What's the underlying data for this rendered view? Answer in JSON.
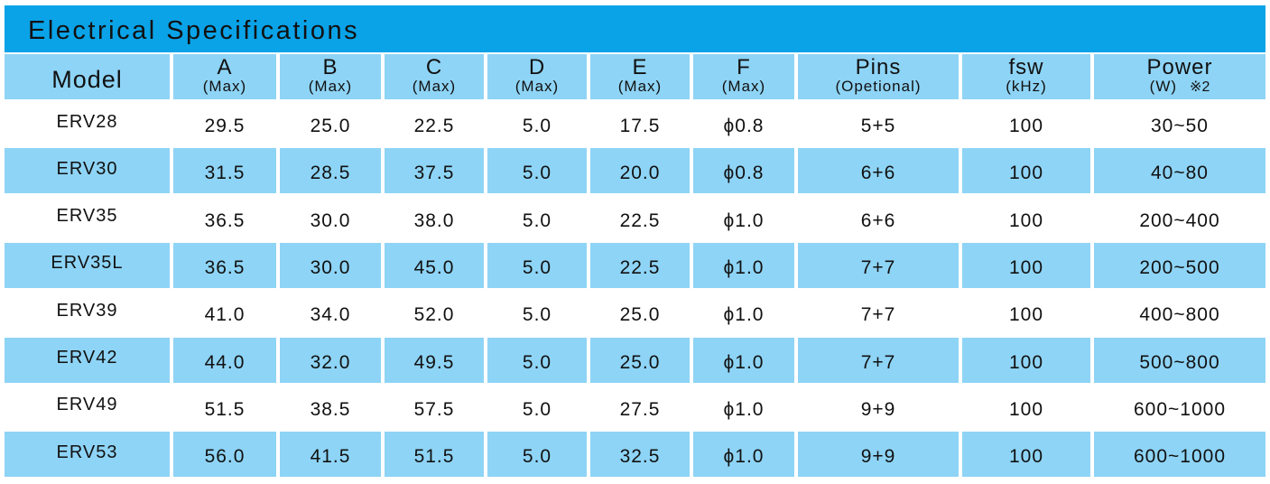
{
  "title": "Electrical Specifications",
  "table": {
    "header": [
      {
        "label": "Model"
      },
      {
        "label": "A",
        "sub": "(Max)"
      },
      {
        "label": "B",
        "sub": "(Max)"
      },
      {
        "label": "C",
        "sub": "(Max)"
      },
      {
        "label": "D",
        "sub": "(Max)"
      },
      {
        "label": "E",
        "sub": "(Max)"
      },
      {
        "label": "F",
        "sub": "(Max)"
      },
      {
        "label": "Pins",
        "sub": "(Opetional)"
      },
      {
        "label": "fsw",
        "sub": "(kHz)"
      },
      {
        "label": "Power",
        "sub": "(W)",
        "note": "※2"
      }
    ],
    "rows": [
      [
        "ERV28",
        "29.5",
        "25.0",
        "22.5",
        "5.0",
        "17.5",
        "ϕ0.8",
        "5+5",
        "100",
        "30~50"
      ],
      [
        "ERV30",
        "31.5",
        "28.5",
        "37.5",
        "5.0",
        "20.0",
        "ϕ0.8",
        "6+6",
        "100",
        "40~80"
      ],
      [
        "ERV35",
        "36.5",
        "30.0",
        "38.0",
        "5.0",
        "22.5",
        "ϕ1.0",
        "6+6",
        "100",
        "200~400"
      ],
      [
        "ERV35L",
        "36.5",
        "30.0",
        "45.0",
        "5.0",
        "22.5",
        "ϕ1.0",
        "7+7",
        "100",
        "200~500"
      ],
      [
        "ERV39",
        "41.0",
        "34.0",
        "52.0",
        "5.0",
        "25.0",
        "ϕ1.0",
        "7+7",
        "100",
        "400~800"
      ],
      [
        "ERV42",
        "44.0",
        "32.0",
        "49.5",
        "5.0",
        "25.0",
        "ϕ1.0",
        "7+7",
        "100",
        "500~800"
      ],
      [
        "ERV49",
        "51.5",
        "38.5",
        "57.5",
        "5.0",
        "27.5",
        "ϕ1.0",
        "9+9",
        "100",
        "600~1000"
      ],
      [
        "ERV53",
        "56.0",
        "41.5",
        "51.5",
        "5.0",
        "32.5",
        "ϕ1.0",
        "9+9",
        "100",
        "600~1000"
      ]
    ]
  }
}
